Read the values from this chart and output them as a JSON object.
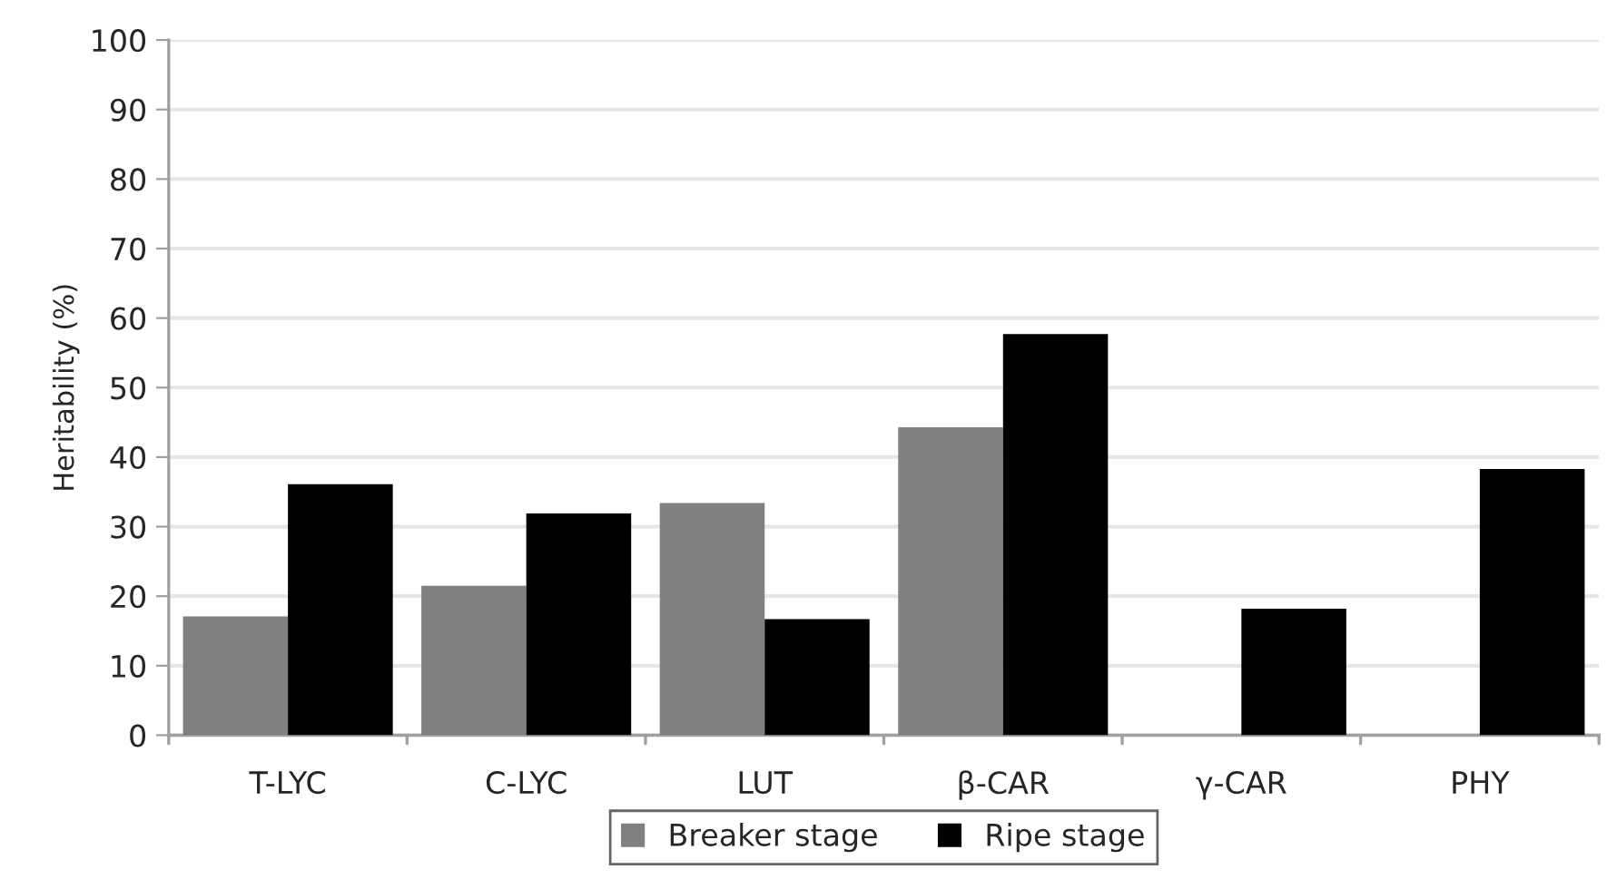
{
  "chart_data": {
    "type": "bar",
    "ylabel": "Heritability (%)",
    "categories": [
      "T-LYC",
      "C-LYC",
      "LUT",
      "β-CAR",
      "γ-CAR",
      "PHY"
    ],
    "series": [
      {
        "name": "Breaker stage",
        "color": "#808080",
        "values": [
          17.1,
          21.5,
          33.4,
          44.3,
          null,
          null
        ]
      },
      {
        "name": "Ripe stage",
        "color": "#000000",
        "values": [
          36.1,
          31.9,
          16.7,
          57.7,
          18.2,
          38.3
        ]
      }
    ],
    "ylim": [
      0,
      100
    ],
    "yticks": [
      0,
      10,
      20,
      30,
      40,
      50,
      60,
      70,
      80,
      90,
      100
    ],
    "grid": "y",
    "legend": "bottom"
  }
}
